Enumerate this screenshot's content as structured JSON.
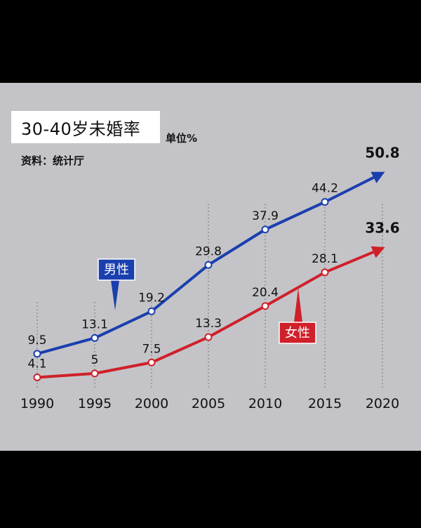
{
  "title": "30-40岁未婚率",
  "unit": "单位%",
  "source": "资料：统计厅",
  "colors": {
    "male": "#1a3fae",
    "female": "#d0202a",
    "panel": "#c4c4c8"
  },
  "chart_data": {
    "type": "line",
    "title": "30-40岁未婚率",
    "unit": "单位%",
    "x": [
      "1990",
      "1995",
      "2000",
      "2005",
      "2010",
      "2015",
      "2020"
    ],
    "ylim": [
      0,
      60
    ],
    "grid": false,
    "series": [
      {
        "name": "男性",
        "key": "male",
        "values": [
          9.5,
          13.1,
          19.2,
          29.8,
          37.9,
          44.2,
          50.8
        ],
        "labels": [
          "9.5",
          "13.1",
          "19.2",
          "29.8",
          "37.9",
          "44.2",
          "50.8"
        ]
      },
      {
        "name": "女性",
        "key": "female",
        "values": [
          4.1,
          5,
          7.5,
          13.3,
          20.4,
          28.1,
          33.6
        ],
        "labels": [
          "4.1",
          "5",
          "7.5",
          "13.3",
          "20.4",
          "28.1",
          "33.6"
        ]
      }
    ]
  }
}
